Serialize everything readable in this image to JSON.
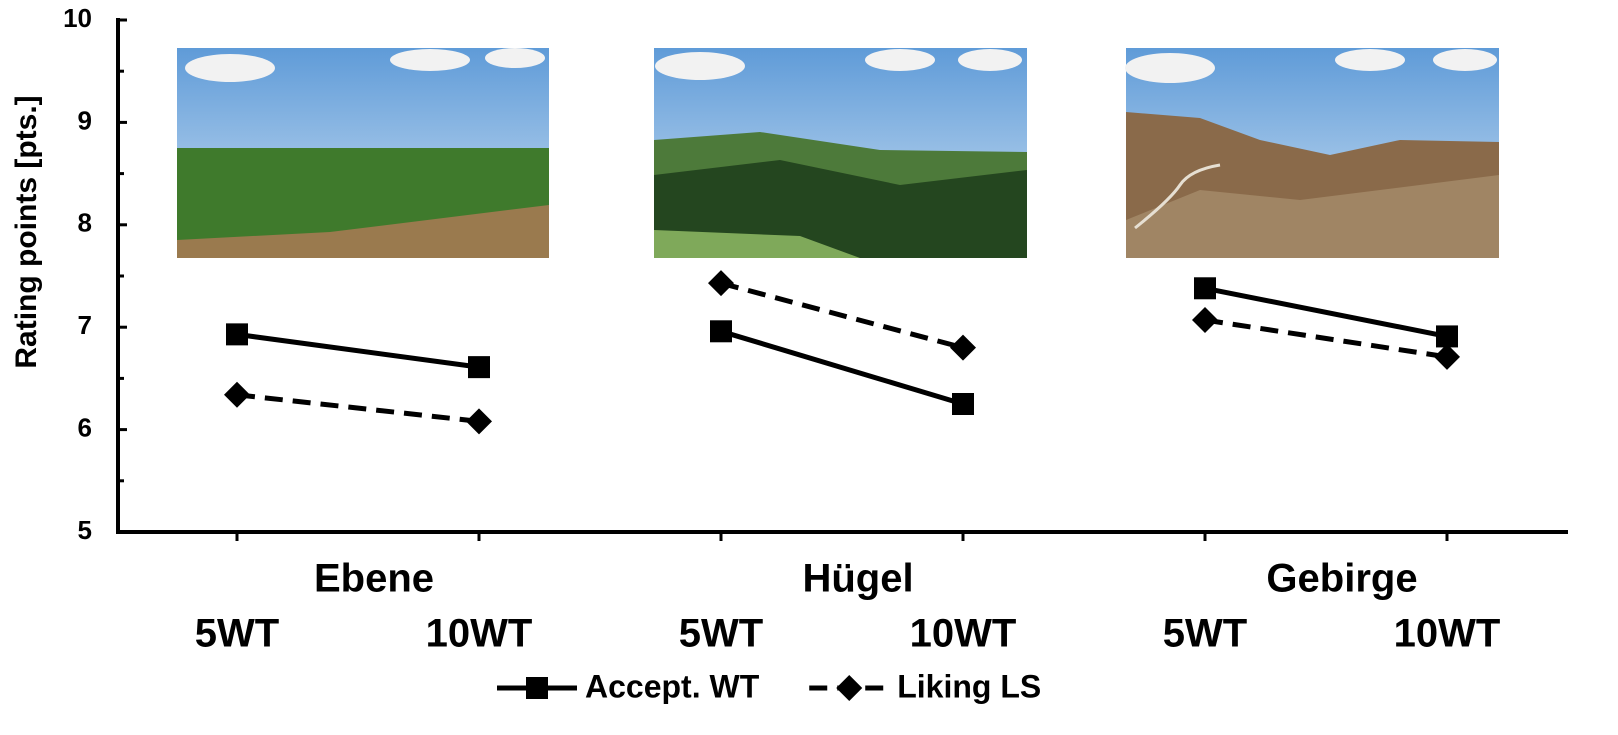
{
  "chart_data": {
    "type": "line",
    "y_label": "Rating points [pts.]",
    "groups": [
      "Ebene",
      "Hügel",
      "Gebirge"
    ],
    "categories": [
      "5WT",
      "10WT",
      "5WT",
      "10WT",
      "5WT",
      "10WT"
    ],
    "series": [
      {
        "name": "Accept. WT",
        "color": "#000000",
        "dash": "solid",
        "marker": "square",
        "values": [
          6.93,
          6.61,
          6.96,
          6.25,
          7.38,
          6.91
        ]
      },
      {
        "name": "Liking LS",
        "color": "#000000",
        "dash": "dashed",
        "marker": "diamond",
        "values": [
          6.34,
          6.08,
          7.43,
          6.8,
          7.07,
          6.71
        ]
      }
    ],
    "ylim": [
      5,
      10
    ],
    "yticks": [
      5,
      6,
      7,
      8,
      9,
      10
    ],
    "yminorticks": [
      5.5,
      6.5,
      7.5,
      8.5,
      9.5
    ],
    "grid": false,
    "legend": "bottom"
  }
}
